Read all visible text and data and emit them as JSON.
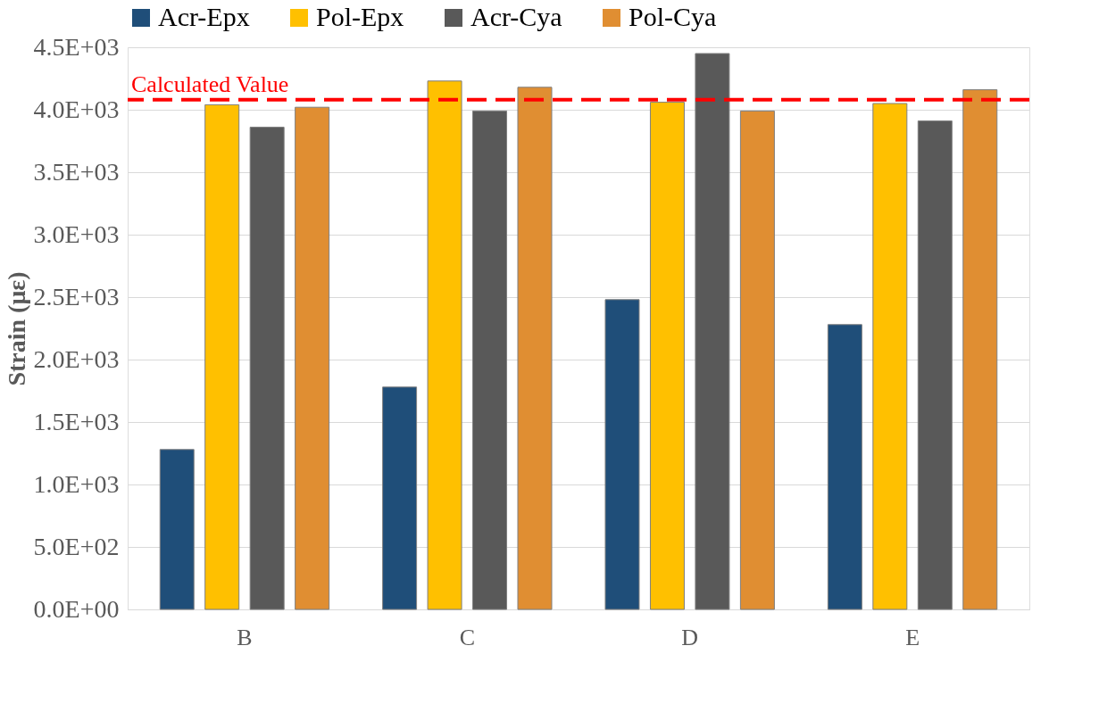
{
  "chart_data": {
    "type": "bar",
    "ylabel": "Strain (με)",
    "categories": [
      "B",
      "C",
      "D",
      "E"
    ],
    "series": [
      {
        "name": "Acr-Epx",
        "color": "#1f4e79",
        "values": [
          1280,
          1780,
          2480,
          2280
        ]
      },
      {
        "name": "Pol-Epx",
        "color": "#ffc000",
        "values": [
          4040,
          4230,
          4060,
          4050
        ]
      },
      {
        "name": "Acr-Cya",
        "color": "#595959",
        "values": [
          3860,
          3990,
          4450,
          3910
        ]
      },
      {
        "name": "Pol-Cya",
        "color": "#e08e32",
        "values": [
          4020,
          4180,
          3990,
          4160
        ]
      }
    ],
    "ylim": [
      0,
      4500
    ],
    "yticks": [
      {
        "value": 0,
        "label": "0.0E+00"
      },
      {
        "value": 500,
        "label": "5.0E+02"
      },
      {
        "value": 1000,
        "label": "1.0E+03"
      },
      {
        "value": 1500,
        "label": "1.5E+03"
      },
      {
        "value": 2000,
        "label": "2.0E+03"
      },
      {
        "value": 2500,
        "label": "2.5E+03"
      },
      {
        "value": 3000,
        "label": "3.0E+03"
      },
      {
        "value": 3500,
        "label": "3.5E+03"
      },
      {
        "value": 4000,
        "label": "4.0E+03"
      },
      {
        "value": 4500,
        "label": "4.5E+03"
      }
    ],
    "ref_lines": [
      {
        "axis": "y",
        "value": 4080,
        "label": "Calculated Value",
        "color": "#ff0000",
        "line_style": "dashed"
      }
    ],
    "grid": "y",
    "legend": "top"
  }
}
